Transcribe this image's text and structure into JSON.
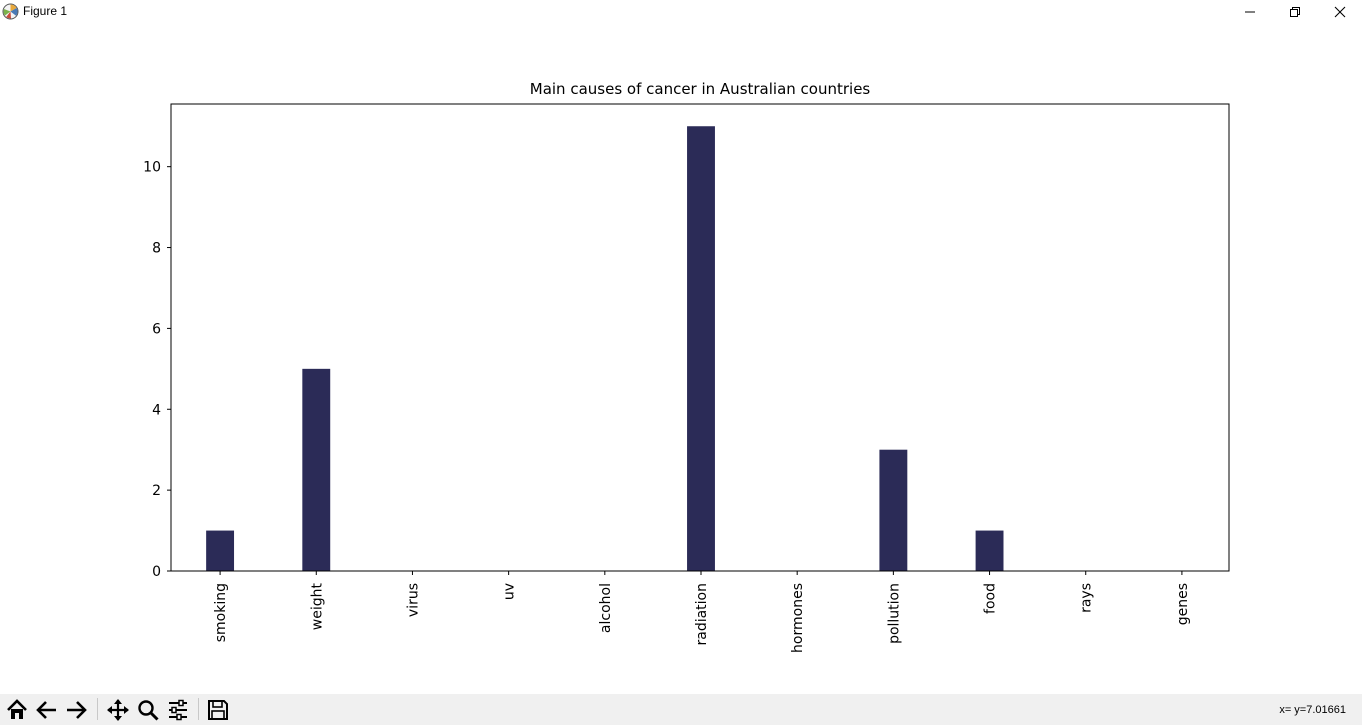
{
  "window": {
    "title": "Figure 1",
    "icon": "matplotlib-logo-icon",
    "controls": [
      "minimize-icon",
      "restore-icon",
      "close-icon"
    ]
  },
  "chart_data": {
    "type": "bar",
    "title": "Main causes of cancer in Australian countries",
    "xlabel": "",
    "ylabel": "",
    "categories": [
      "smoking",
      "weight",
      "virus",
      "uv",
      "alcohol",
      "radiation",
      "hormones",
      "pollution",
      "food",
      "rays",
      "genes"
    ],
    "values": [
      1,
      5,
      0,
      0,
      0,
      11,
      0,
      3,
      1,
      0,
      0
    ],
    "ylim": [
      0,
      11.55
    ],
    "yticks": [
      0,
      2,
      4,
      6,
      8,
      10
    ],
    "bar_color": "#2b2b57",
    "grid": false,
    "legend": "none",
    "xtick_rotation": "vertical"
  },
  "toolbar": {
    "buttons": [
      "home-icon",
      "back-icon",
      "forward-icon",
      "pan-icon",
      "zoom-icon",
      "configure-subplots-icon",
      "save-icon"
    ],
    "coords": "x= y=7.01661"
  }
}
